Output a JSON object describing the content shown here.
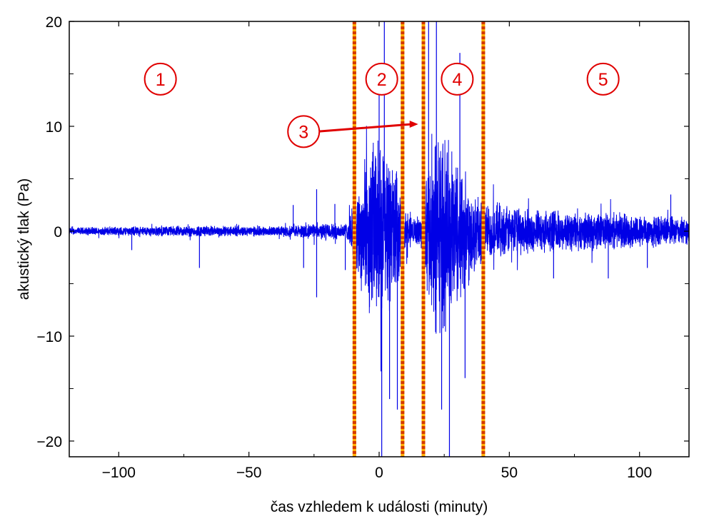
{
  "chart_data": {
    "type": "line",
    "xlabel": "čas vzhledem k události (minuty)",
    "ylabel": "akustický tlak (Pa)",
    "xlim": [
      -119,
      119
    ],
    "ylim": [
      -21.5,
      20
    ],
    "x_ticks": [
      -100,
      -50,
      0,
      50,
      100
    ],
    "x_tick_labels": [
      "−100",
      "−50",
      "0",
      "50",
      "100"
    ],
    "y_ticks": [
      -20,
      -10,
      0,
      10,
      20
    ],
    "y_tick_labels": [
      "−20",
      "−10",
      "0",
      "10",
      "20"
    ],
    "grid": false,
    "series_color": "#0000e6",
    "envelope": [
      {
        "x": -119,
        "amp": 0.4
      },
      {
        "x": -70,
        "amp": 0.6
      },
      {
        "x": -40,
        "amp": 0.5
      },
      {
        "x": -25,
        "amp": 0.8
      },
      {
        "x": -12,
        "amp": 0.9
      },
      {
        "x": -9,
        "amp": 4
      },
      {
        "x": -6,
        "amp": 7
      },
      {
        "x": -2,
        "amp": 10
      },
      {
        "x": 2,
        "amp": 9
      },
      {
        "x": 6,
        "amp": 7
      },
      {
        "x": 9,
        "amp": 3
      },
      {
        "x": 12,
        "amp": 1.5
      },
      {
        "x": 16,
        "amp": 1.5
      },
      {
        "x": 18,
        "amp": 6
      },
      {
        "x": 22,
        "amp": 11
      },
      {
        "x": 28,
        "amp": 9
      },
      {
        "x": 34,
        "amp": 6
      },
      {
        "x": 40,
        "amp": 3
      },
      {
        "x": 60,
        "amp": 2.2
      },
      {
        "x": 80,
        "amp": 2
      },
      {
        "x": 100,
        "amp": 1.8
      },
      {
        "x": 119,
        "amp": 1.4
      }
    ],
    "spikes": [
      {
        "x": -69,
        "y": -3.5
      },
      {
        "x": -95,
        "y": -1.8
      },
      {
        "x": -24,
        "y": 4
      },
      {
        "x": -24,
        "y": -6.3
      },
      {
        "x": -29,
        "y": -3.5
      },
      {
        "x": -33,
        "y": 2.5
      },
      {
        "x": -17,
        "y": 2.6
      },
      {
        "x": -13,
        "y": -3.7
      },
      {
        "x": 0,
        "y": 15
      },
      {
        "x": 1,
        "y": -21.5
      },
      {
        "x": 2,
        "y": 20
      },
      {
        "x": 4,
        "y": -16
      },
      {
        "x": 7,
        "y": -17
      },
      {
        "x": 19,
        "y": 20
      },
      {
        "x": 22,
        "y": 20
      },
      {
        "x": 24,
        "y": -17
      },
      {
        "x": 27,
        "y": -21.5
      },
      {
        "x": 31,
        "y": 17
      },
      {
        "x": 33,
        "y": -14
      },
      {
        "x": 67,
        "y": -4.5
      },
      {
        "x": 88,
        "y": -4.5
      },
      {
        "x": 103,
        "y": -3.5
      },
      {
        "x": 112,
        "y": 3.5
      }
    ],
    "region_boundaries": [
      -9.5,
      9,
      17,
      40
    ],
    "boundary_color": "#d43a00",
    "annotations": [
      {
        "label": "1",
        "x": -84,
        "y": 14.5
      },
      {
        "label": "2",
        "x": 1,
        "y": 14.5
      },
      {
        "label": "4",
        "x": 30,
        "y": 14.5
      },
      {
        "label": "5",
        "x": 86,
        "y": 14.5
      },
      {
        "label": "3",
        "x": -29,
        "y": 9.5
      }
    ],
    "arrow": {
      "from_x": -24,
      "from_y": 9.5,
      "to_x": 15,
      "to_y": 10.2
    },
    "annotation_color": "#e00000"
  }
}
